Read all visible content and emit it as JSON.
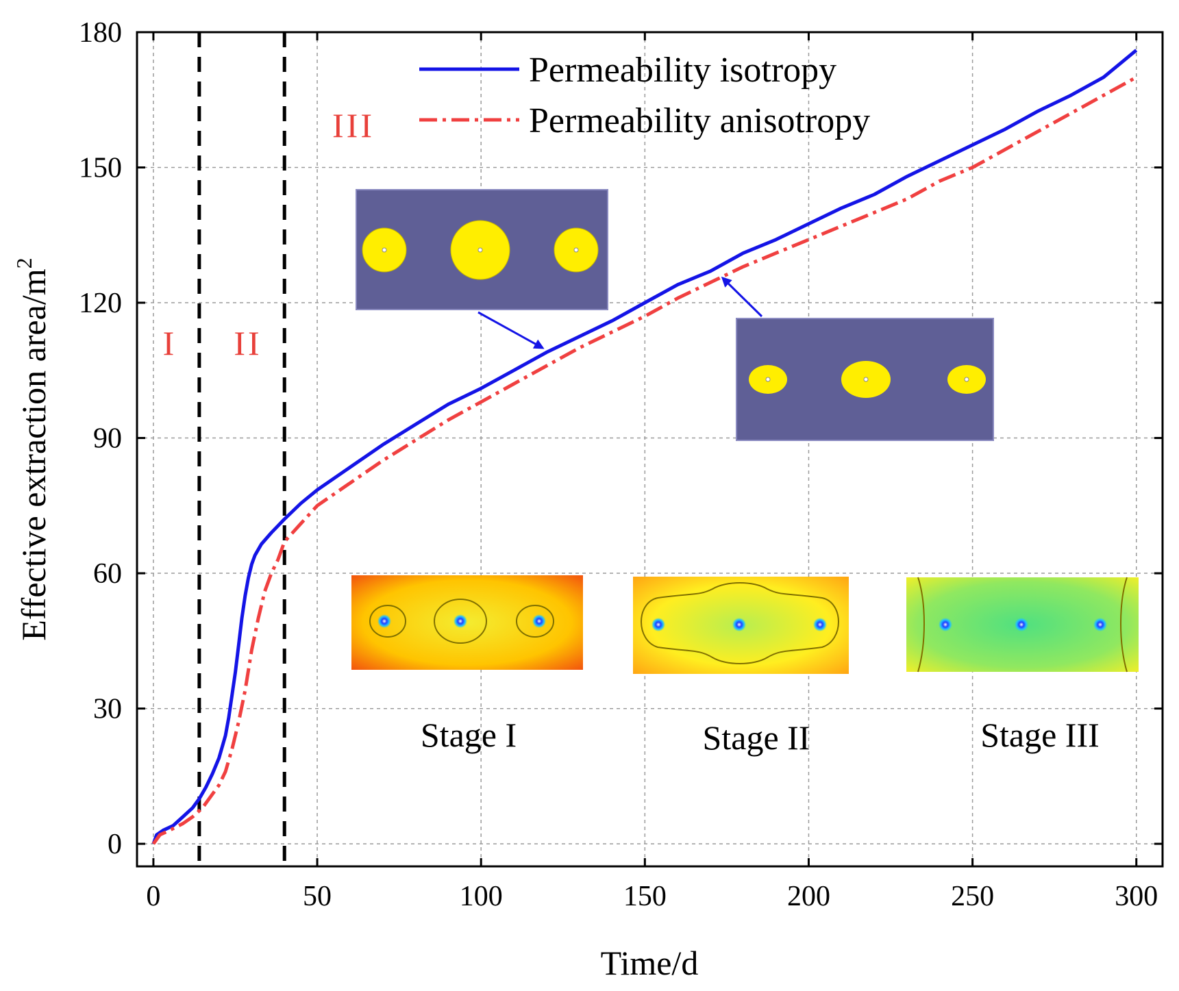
{
  "chart_data": {
    "type": "line",
    "xlabel": "Time/d",
    "ylabel": "Effective extraction area/m",
    "ylabel_superscript": "2",
    "xlim": [
      -5,
      308
    ],
    "ylim": [
      -5,
      180
    ],
    "x_ticks": [
      0,
      50,
      100,
      150,
      200,
      250,
      300
    ],
    "y_ticks": [
      0,
      30,
      60,
      90,
      120,
      150,
      180
    ],
    "grid": true,
    "legend_position": "top-right",
    "series": [
      {
        "name": "Permeability isotropy",
        "color": "#1414e6",
        "style": "solid",
        "points": [
          [
            0,
            0
          ],
          [
            1,
            2
          ],
          [
            3,
            3
          ],
          [
            6,
            4
          ],
          [
            9,
            6
          ],
          [
            12,
            8
          ],
          [
            14,
            10
          ],
          [
            16,
            12.5
          ],
          [
            18,
            15.5
          ],
          [
            20,
            19
          ],
          [
            22,
            24
          ],
          [
            23,
            28
          ],
          [
            24,
            33
          ],
          [
            25,
            38
          ],
          [
            26,
            44
          ],
          [
            27,
            50
          ],
          [
            28,
            55
          ],
          [
            29,
            59
          ],
          [
            30,
            62
          ],
          [
            31,
            64
          ],
          [
            33,
            66.5
          ],
          [
            36,
            69
          ],
          [
            40,
            72
          ],
          [
            45,
            75.5
          ],
          [
            50,
            78.5
          ],
          [
            60,
            83.5
          ],
          [
            70,
            88.5
          ],
          [
            80,
            93
          ],
          [
            90,
            97.5
          ],
          [
            100,
            101
          ],
          [
            110,
            105
          ],
          [
            120,
            109
          ],
          [
            130,
            112.5
          ],
          [
            140,
            116
          ],
          [
            150,
            120
          ],
          [
            160,
            124
          ],
          [
            170,
            127
          ],
          [
            180,
            131
          ],
          [
            190,
            134
          ],
          [
            200,
            137.5
          ],
          [
            210,
            141
          ],
          [
            220,
            144
          ],
          [
            230,
            148
          ],
          [
            240,
            151.5
          ],
          [
            250,
            155
          ],
          [
            260,
            158.5
          ],
          [
            270,
            162.5
          ],
          [
            280,
            166
          ],
          [
            290,
            170
          ],
          [
            300,
            176
          ]
        ]
      },
      {
        "name": "Permeability anisotropy",
        "color": "#f04040",
        "style": "dash-dot",
        "points": [
          [
            0,
            0
          ],
          [
            2,
            2
          ],
          [
            5,
            3
          ],
          [
            9,
            4.5
          ],
          [
            12,
            6
          ],
          [
            15,
            8
          ],
          [
            18,
            11
          ],
          [
            20,
            13
          ],
          [
            22,
            16
          ],
          [
            24,
            21
          ],
          [
            26,
            27
          ],
          [
            28,
            34
          ],
          [
            30,
            43
          ],
          [
            32,
            50
          ],
          [
            34,
            56
          ],
          [
            36,
            60
          ],
          [
            38,
            63
          ],
          [
            40,
            67
          ],
          [
            45,
            71
          ],
          [
            50,
            75
          ],
          [
            60,
            80
          ],
          [
            70,
            85
          ],
          [
            80,
            89.5
          ],
          [
            90,
            94
          ],
          [
            100,
            98
          ],
          [
            110,
            102
          ],
          [
            120,
            106
          ],
          [
            130,
            110
          ],
          [
            140,
            113.5
          ],
          [
            150,
            117
          ],
          [
            160,
            121
          ],
          [
            170,
            124.5
          ],
          [
            180,
            128
          ],
          [
            190,
            131
          ],
          [
            200,
            134
          ],
          [
            210,
            137
          ],
          [
            220,
            140
          ],
          [
            230,
            143
          ],
          [
            240,
            147
          ],
          [
            250,
            150
          ],
          [
            260,
            154
          ],
          [
            270,
            158
          ],
          [
            280,
            162
          ],
          [
            290,
            166
          ],
          [
            300,
            170
          ]
        ]
      }
    ],
    "stage_dividers": [
      14,
      40
    ],
    "region_labels": [
      "I",
      "II",
      "III"
    ],
    "stage_labels": [
      "Stage I",
      "Stage II",
      "Stage III"
    ],
    "colors": {
      "inset_blue_bg": "#5f5f96",
      "inset_yellow": "#ffee00",
      "divider": "#000000"
    }
  }
}
